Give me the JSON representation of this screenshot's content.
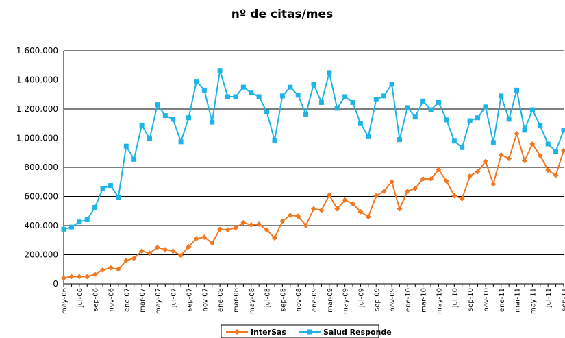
{
  "chart_data": {
    "type": "line",
    "title": "nº de citas/mes",
    "categories": [
      "may-06",
      null,
      "jul-06",
      null,
      "sep-06",
      null,
      "nov-06",
      null,
      "ene-07",
      null,
      "mar-07",
      null,
      "may-07",
      null,
      "jul-07",
      null,
      "sep-07",
      null,
      "nov-07",
      null,
      "ene-08",
      null,
      "mar-08",
      null,
      "may-08",
      null,
      "jul-08",
      null,
      "sep-08",
      null,
      "nov-08",
      null,
      "ene-09",
      null,
      "mar-09",
      null,
      "may-09",
      null,
      "jul-09",
      null,
      "sep-09",
      null,
      "nov-09",
      null,
      "ene-10",
      null,
      "mar-10",
      null,
      "may-10",
      null,
      "jul-10",
      null,
      "sep-10",
      null,
      "nov-10",
      null,
      "ene-11",
      null,
      "mar-11",
      null,
      "may-11",
      null,
      "jul-11",
      null,
      "sep-11"
    ],
    "series": [
      {
        "name": "InterSas",
        "color": "#f07820",
        "marker": "diamond",
        "values": [
          40000,
          50000,
          50000,
          50000,
          65000,
          95000,
          110000,
          100000,
          160000,
          175000,
          225000,
          210000,
          250000,
          235000,
          225000,
          195000,
          255000,
          310000,
          320000,
          280000,
          375000,
          370000,
          385000,
          420000,
          405000,
          410000,
          370000,
          315000,
          430000,
          470000,
          465000,
          400000,
          515000,
          505000,
          610000,
          515000,
          575000,
          550000,
          495000,
          460000,
          605000,
          635000,
          700000,
          515000,
          635000,
          655000,
          720000,
          720000,
          785000,
          705000,
          605000,
          585000,
          740000,
          770000,
          840000,
          685000,
          885000,
          860000,
          1030000,
          845000,
          960000,
          880000,
          780000,
          745000,
          915000
        ]
      },
      {
        "name": "Salud Responde",
        "color": "#1eb4e6",
        "marker": "square",
        "values": [
          375000,
          390000,
          425000,
          440000,
          525000,
          655000,
          675000,
          595000,
          945000,
          855000,
          1090000,
          995000,
          1230000,
          1155000,
          1130000,
          975000,
          1140000,
          1390000,
          1330000,
          1110000,
          1465000,
          1285000,
          1285000,
          1350000,
          1310000,
          1285000,
          1180000,
          985000,
          1290000,
          1350000,
          1295000,
          1165000,
          1370000,
          1245000,
          1450000,
          1205000,
          1285000,
          1245000,
          1100000,
          1010000,
          1265000,
          1290000,
          1370000,
          990000,
          1210000,
          1145000,
          1255000,
          1195000,
          1245000,
          1125000,
          980000,
          935000,
          1120000,
          1140000,
          1215000,
          970000,
          1290000,
          1130000,
          1330000,
          1055000,
          1195000,
          1085000,
          960000,
          910000,
          1055000
        ]
      }
    ],
    "ylim": [
      0,
      1600000
    ],
    "yticks": [
      0,
      {
        "value": 200000,
        "label": "200.000"
      },
      {
        "value": 400000,
        "label": "400.000"
      },
      {
        "value": 600000,
        "label": "600.000"
      },
      {
        "value": 800000,
        "label": "800.000"
      },
      {
        "value": 1000000,
        "label": "1.000.000"
      },
      {
        "value": 1200000,
        "label": "1.200.000"
      },
      {
        "value": 1400000,
        "label": "1.400.000"
      },
      {
        "value": 1600000,
        "label": "1.600.000"
      }
    ],
    "grid": true,
    "legend": "bottom"
  }
}
